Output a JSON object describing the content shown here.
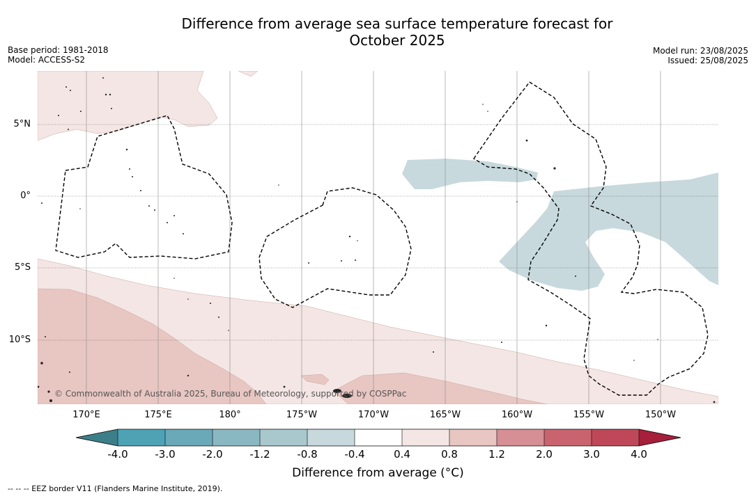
{
  "title": {
    "line1": "Difference from average sea surface temperature forecast for",
    "line2": "October 2025"
  },
  "meta_left": {
    "base_period": "Base period: 1981-2018",
    "model": "Model: ACCESS-S2"
  },
  "meta_right": {
    "model_run": "Model run: 23/08/2025",
    "issued": "Issued: 25/08/2025"
  },
  "map": {
    "lat_labels": [
      "5°N",
      "0°",
      "5°S",
      "10°S"
    ],
    "lon_labels": [
      "170°E",
      "175°E",
      "180°",
      "175°W",
      "170°W",
      "165°W",
      "160°W",
      "155°W",
      "150°W"
    ],
    "attribution": "© Commonwealth of Australia 2025, Bureau of Meteorology, supported by COSPPac",
    "colors": {
      "cool_light": "#c7d9dd",
      "warm_0_4": "#f4e6e4",
      "warm_0_8": "#e8c6c2",
      "eez": "#000000"
    }
  },
  "colorbar": {
    "ticks": [
      "-4.0",
      "-3.0",
      "-2.0",
      "-1.2",
      "-0.8",
      "-0.4",
      "0.4",
      "0.8",
      "1.2",
      "2.0",
      "3.0",
      "4.0"
    ],
    "colors": [
      "#3d7f89",
      "#4da3b4",
      "#6aa9b7",
      "#8ab8c2",
      "#a8c8cd",
      "#c7d9dd",
      "#ffffff",
      "#f4e6e4",
      "#e8c6c2",
      "#d68f95",
      "#c9646f",
      "#bf4858",
      "#a61f3b"
    ],
    "label": "Difference from average (°C)"
  },
  "footnote": "--  --  -- EEZ border V11 (Flanders Marine Institute, 2019)."
}
